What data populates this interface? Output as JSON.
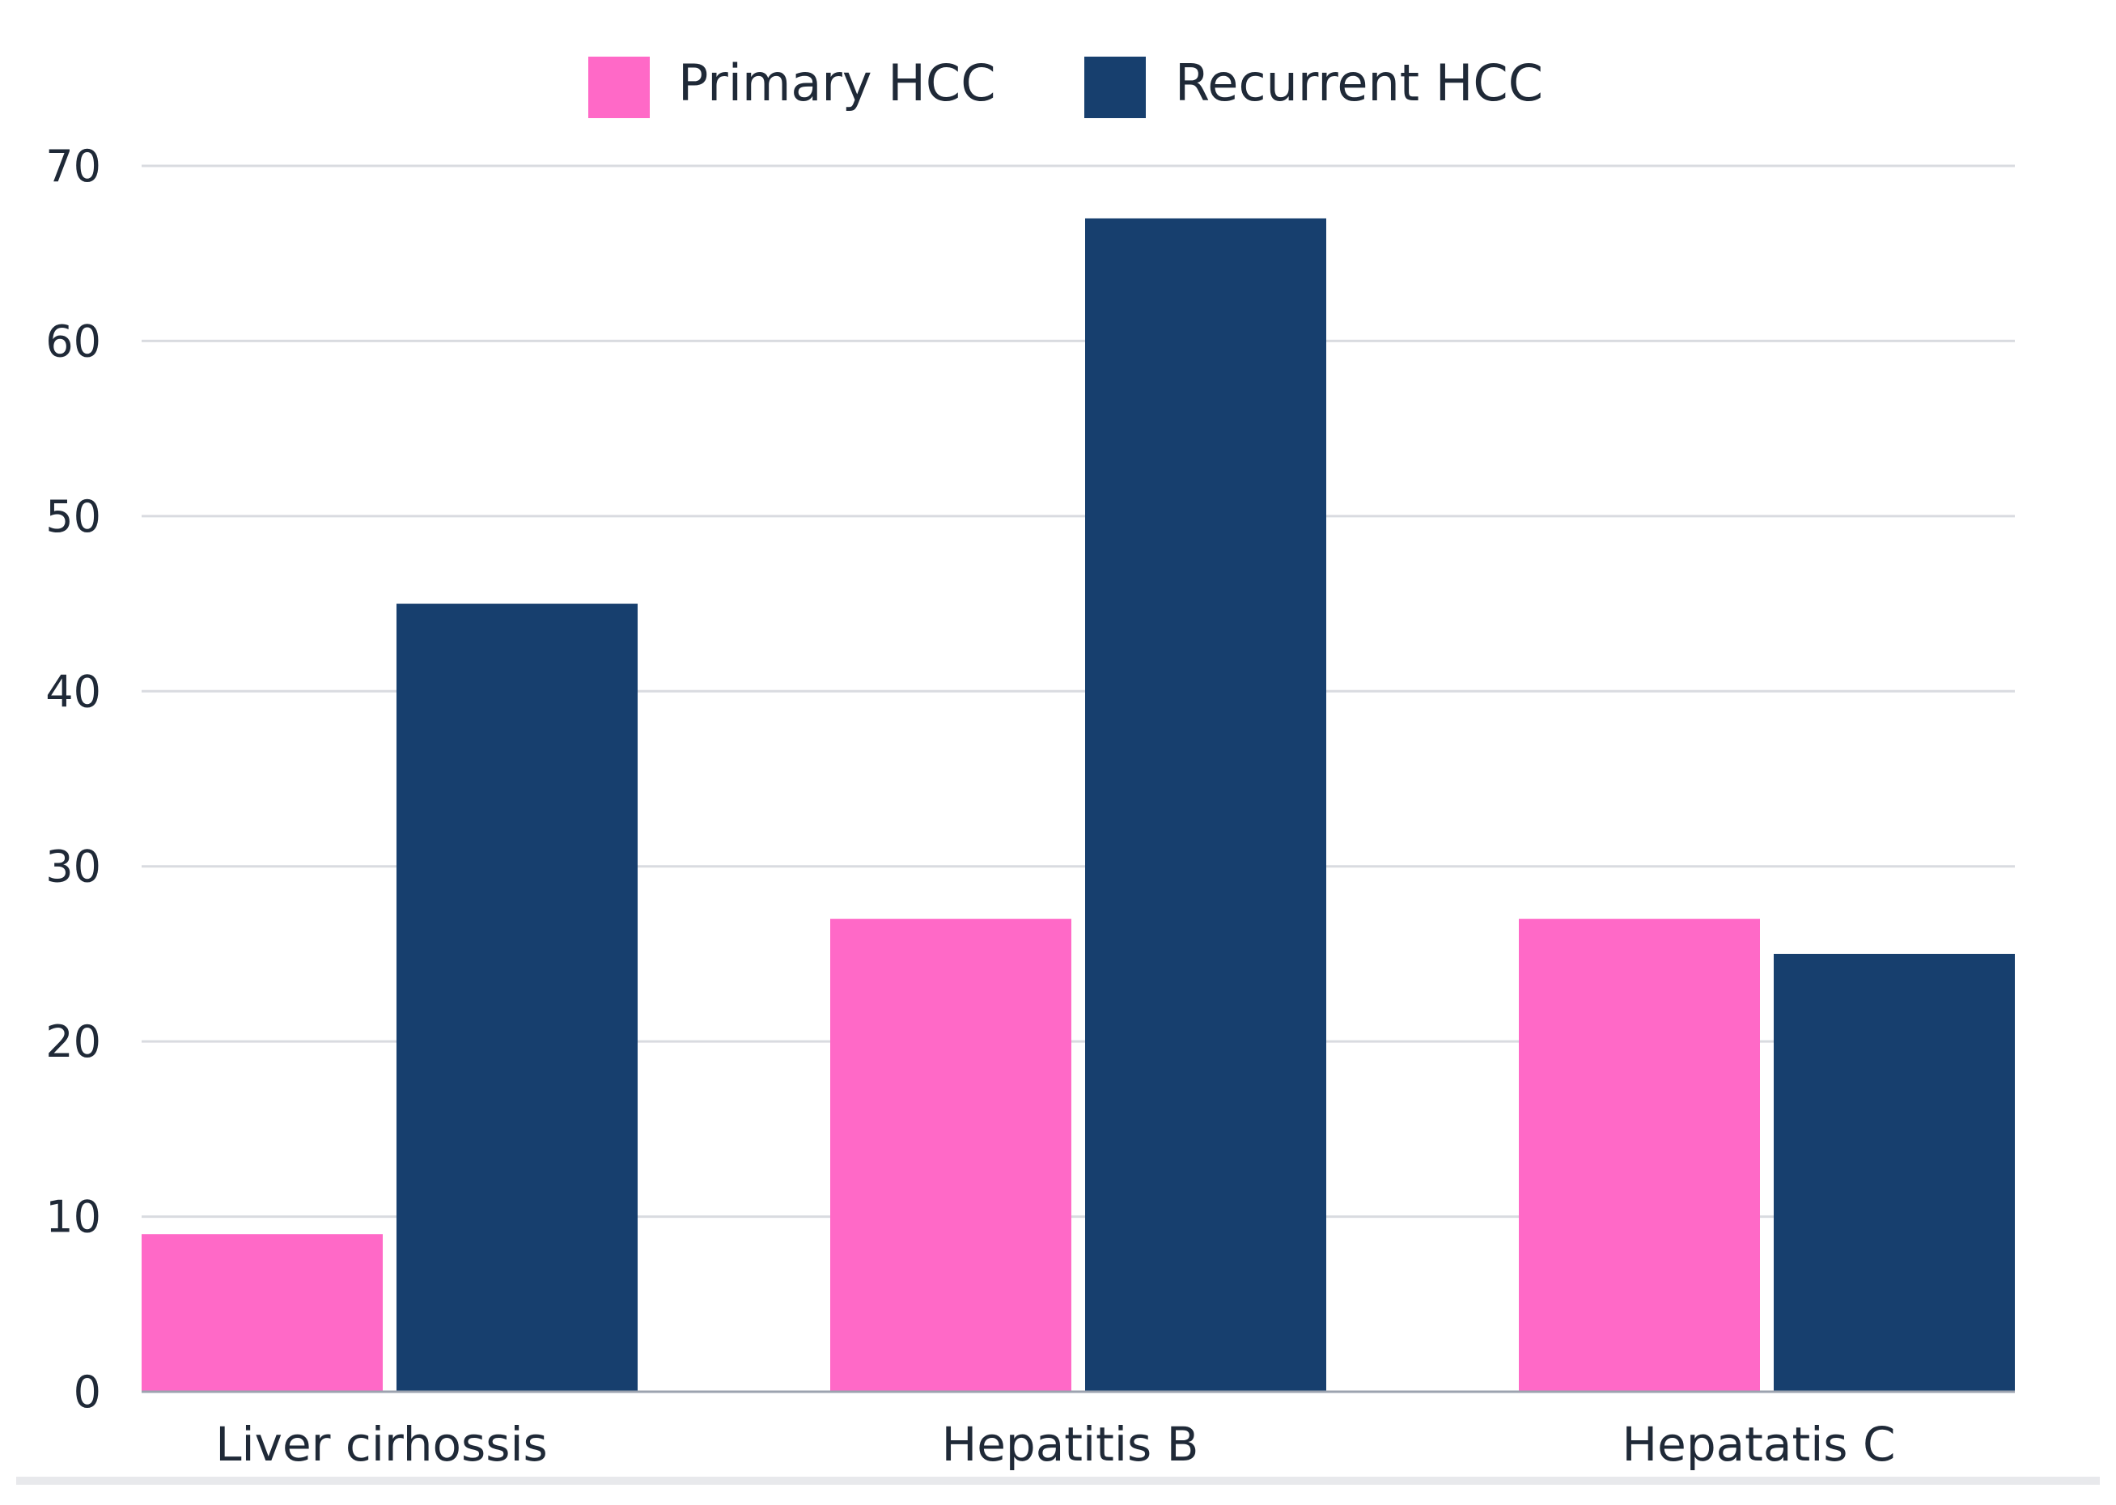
{
  "chart_data": {
    "type": "bar",
    "title": "",
    "xlabel": "",
    "ylabel": "",
    "categories": [
      "Liver cirhossis",
      "Hepatitis B",
      "Hepatatis C"
    ],
    "series": [
      {
        "name": "Primary HCC",
        "color": "#ff69c7",
        "values": [
          9,
          27,
          27
        ]
      },
      {
        "name": "Recurrent HCC",
        "color": "#173f6e",
        "values": [
          45,
          67,
          25
        ]
      }
    ],
    "ylim": [
      0,
      70
    ],
    "yticks": [
      0,
      10,
      20,
      30,
      40,
      50,
      60,
      70
    ],
    "grid": true,
    "legend_position": "top-center"
  }
}
